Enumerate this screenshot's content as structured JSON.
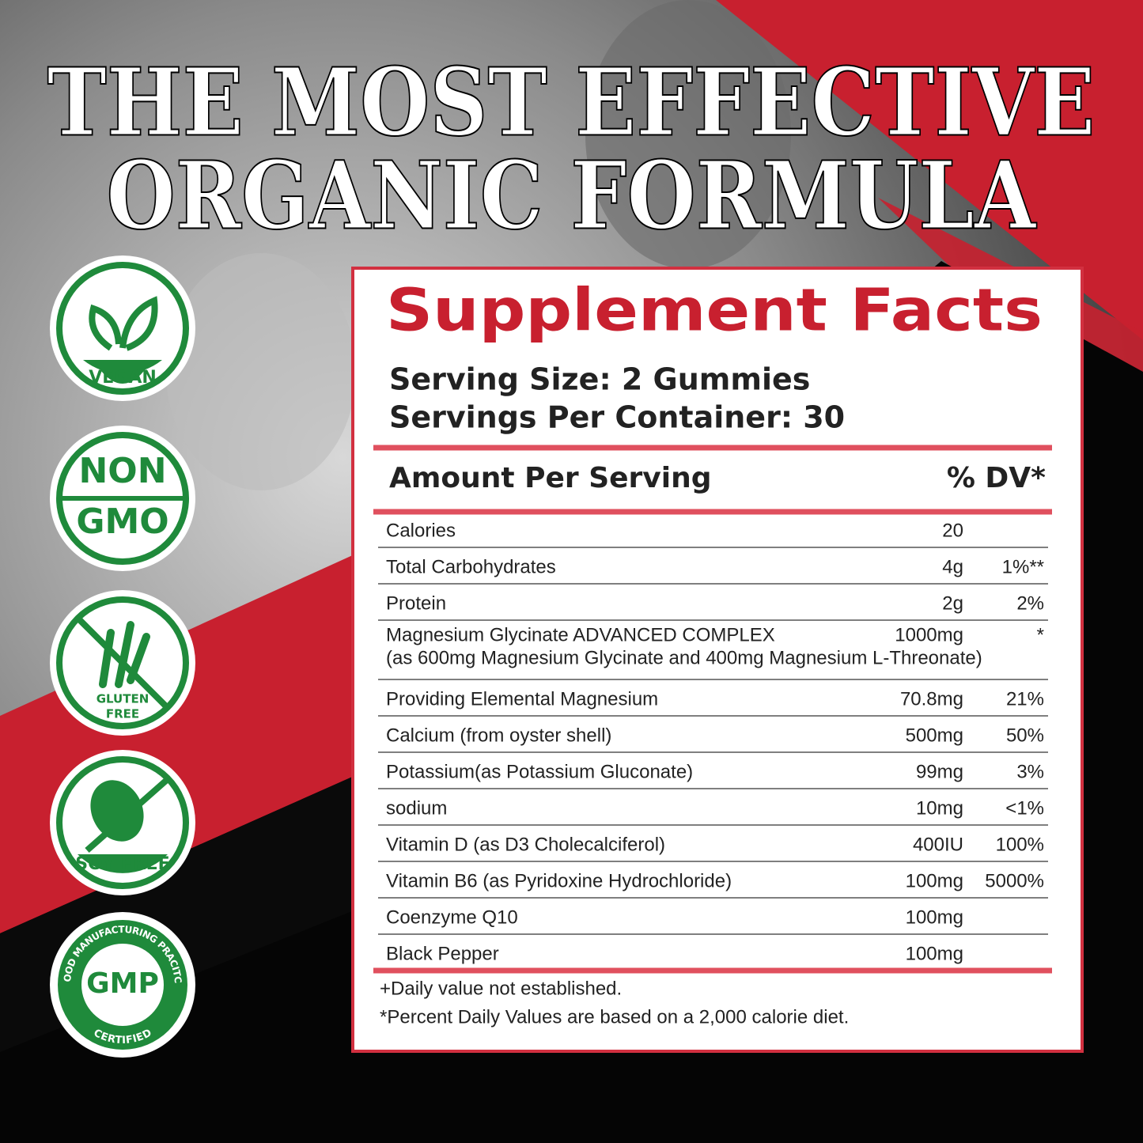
{
  "headline": [
    "THE MOST EFFECTIVE",
    "ORGANIC FORMULA"
  ],
  "badges": {
    "vegan": "VEGAN",
    "non_gmo": [
      "NON",
      "GMO"
    ],
    "gluten_free": [
      "GLUTEN",
      "FREE"
    ],
    "soy_free": "SOY FREE",
    "gmp": {
      "mark": "GMP",
      "ring_top": "GOOD MANUFACTURING PRACITCE",
      "ring_bottom": "CERTIFIED"
    }
  },
  "facts": {
    "title": "Supplement Facts",
    "serving_size": "Serving Size: 2 Gummies",
    "servings_per_container": "Servings Per Container: 30",
    "header": {
      "amount": "Amount Per Serving",
      "dv": "% DV*"
    },
    "rows": [
      {
        "name": "Calories",
        "amount": "20"
      },
      {
        "name": "Total Carbohydrates",
        "amount": "4g",
        "dv": "1%**"
      },
      {
        "name": "Protein",
        "amount": "2g",
        "dv": "2%"
      },
      {
        "name": "Magnesium Glycinate ADVANCED COMPLEX",
        "amount": "1000mg",
        "dv": "*",
        "note": "(as 600mg Magnesium Glycinate and 400mg Magnesium L-Threonate)"
      },
      {
        "name": "Providing Elemental Magnesium",
        "amount": "70.8mg",
        "dv": "21%"
      },
      {
        "name": "Calcium (from oyster shell)",
        "amount": "500mg",
        "dv": "50%"
      },
      {
        "name": "Potassium(as Potassium Gluconate)",
        "amount": "99mg",
        "dv": "3%"
      },
      {
        "name": "sodium",
        "amount": "10mg",
        "dv": "<1%"
      },
      {
        "name": "Vitamin D (as D3 Cholecalciferol)",
        "amount": "400IU",
        "dv": "100%"
      },
      {
        "name": "Vitamin B6 (as Pyridoxine Hydrochloride)",
        "amount": "100mg",
        "dv": "5000%"
      },
      {
        "name": "Coenzyme Q10",
        "amount": "100mg"
      },
      {
        "name": "Black Pepper",
        "amount": "100mg"
      }
    ],
    "footnotes": [
      "+Daily value not established.",
      "*Percent Daily Values are based on a 2,000 calorie diet."
    ]
  }
}
